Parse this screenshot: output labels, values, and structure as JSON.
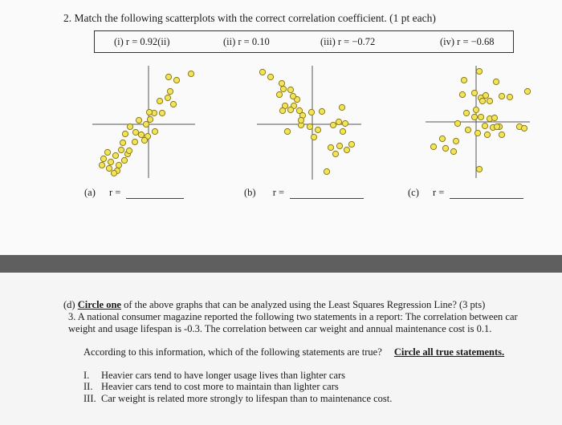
{
  "question2": {
    "heading": "2. Match the following scatterplots with the correct correlation coefficient.  (1 pt each)",
    "coefficients": [
      {
        "label": "(i) r = 0.92(ii)"
      },
      {
        "label": "(ii) r = 0.10"
      },
      {
        "label": "(iii) r = −0.72"
      },
      {
        "label": "(iv) r = −0.68"
      }
    ],
    "answers": [
      {
        "label": "(a)",
        "r": "r ="
      },
      {
        "label": "(b)",
        "r": "r ="
      },
      {
        "label": "(c)",
        "r": "r ="
      }
    ]
  },
  "part_d": {
    "label": "(d)",
    "circle_one": "Circle one",
    "text": " of the above graphs that can be analyzed using the Least Squares Regression Line? (3 pts)"
  },
  "question3": {
    "line1": "3.  A national consumer magazine reported the following two statements in a report: The correlation between car",
    "line2": "weight and usage lifespan is -0.3.  The correlation between car weight and annual maintenance cost is 0.1.",
    "prompt": "According to this information, which of the following statements are true?",
    "instruction": "Circle all true statements.",
    "statements": [
      {
        "num": "I.",
        "text": "Heavier cars tend to have longer usage lives than lighter cars"
      },
      {
        "num": "II.",
        "text": "Heavier cars tend to cost more to maintain than lighter cars"
      },
      {
        "num": "III.",
        "text": "Car weight is related more strongly to lifespan than to maintenance cost."
      }
    ]
  },
  "colors": {
    "marker_fill": "#f2e45a",
    "marker_stroke": "#8a7a18",
    "axis": "#555555"
  }
}
